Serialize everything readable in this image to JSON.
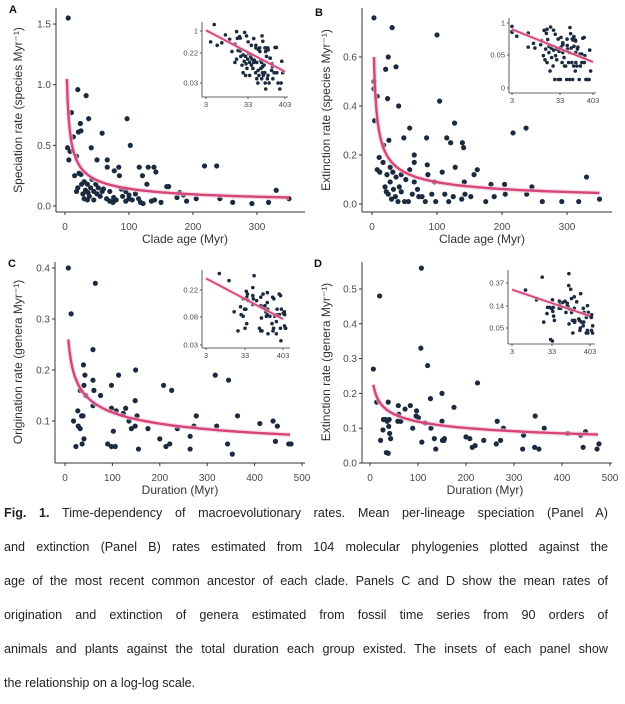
{
  "colors": {
    "points": "#1b2a3e",
    "fit": "#d6457a",
    "fit_band": "#f3c9d8",
    "axis": "#333333"
  },
  "chart_data": [
    {
      "panel": "A",
      "type": "scatter",
      "xlabel": "Clade age (Myr)",
      "ylabel": "Speciation rate (species Myr⁻¹)",
      "xticks": [
        0,
        100,
        200,
        300
      ],
      "yticks": [
        0.0,
        0.5,
        1.0,
        1.5
      ],
      "ytick_labels": [
        "0.0",
        "0.5",
        "1.0",
        "1.5"
      ],
      "fit": {
        "type": "power",
        "a": 1.96,
        "b": -0.569,
        "xrange": [
          3,
          350
        ]
      },
      "points": [
        [
          5,
          1.55
        ],
        [
          33,
          0.91
        ],
        [
          20,
          0.96
        ],
        [
          10,
          0.77
        ],
        [
          24,
          0.68
        ],
        [
          37,
          0.72
        ],
        [
          97,
          0.72
        ],
        [
          102,
          0.5
        ],
        [
          58,
          0.6
        ],
        [
          25,
          0.62
        ],
        [
          21,
          0.61
        ],
        [
          13,
          0.57
        ],
        [
          41,
          0.48
        ],
        [
          4,
          0.48
        ],
        [
          8,
          0.45
        ],
        [
          6,
          0.38
        ],
        [
          18,
          0.41
        ],
        [
          50,
          0.38
        ],
        [
          66,
          0.38
        ],
        [
          66,
          0.32
        ],
        [
          84,
          0.32
        ],
        [
          116,
          0.32
        ],
        [
          130,
          0.32
        ],
        [
          139,
          0.32
        ],
        [
          218,
          0.33
        ],
        [
          237,
          0.33
        ],
        [
          142,
          0.28
        ],
        [
          121,
          0.25
        ],
        [
          85,
          0.25
        ],
        [
          77,
          0.29
        ],
        [
          128,
          0.18
        ],
        [
          159,
          0.16
        ],
        [
          162,
          0.16
        ],
        [
          179,
          0.11
        ],
        [
          330,
          0.13
        ],
        [
          15,
          0.25
        ],
        [
          22,
          0.27
        ],
        [
          25,
          0.26
        ],
        [
          30,
          0.2
        ],
        [
          35,
          0.18
        ],
        [
          40,
          0.15
        ],
        [
          45,
          0.12
        ],
        [
          28,
          0.1
        ],
        [
          32,
          0.13
        ],
        [
          20,
          0.15
        ],
        [
          18,
          0.12
        ],
        [
          50,
          0.1
        ],
        [
          55,
          0.08
        ],
        [
          60,
          0.14
        ],
        [
          65,
          0.06
        ],
        [
          70,
          0.04
        ],
        [
          75,
          0.03
        ],
        [
          80,
          0.05
        ],
        [
          90,
          0.08
        ],
        [
          95,
          0.04
        ],
        [
          100,
          0.06
        ],
        [
          105,
          0.05
        ],
        [
          110,
          0.1
        ],
        [
          115,
          0.06
        ],
        [
          118,
          0.03
        ],
        [
          122,
          0.02
        ],
        [
          135,
          0.04
        ],
        [
          140,
          0.05
        ],
        [
          150,
          0.03
        ],
        [
          175,
          0.07
        ],
        [
          190,
          0.04
        ],
        [
          205,
          0.06
        ],
        [
          242,
          0.06
        ],
        [
          262,
          0.03
        ],
        [
          292,
          0.02
        ],
        [
          318,
          0.03
        ],
        [
          350,
          0.06
        ],
        [
          38,
          0.08
        ],
        [
          42,
          0.22
        ],
        [
          26,
          0.18
        ],
        [
          30,
          0.06
        ],
        [
          36,
          0.11
        ],
        [
          48,
          0.18
        ],
        [
          52,
          0.15
        ],
        [
          58,
          0.12
        ],
        [
          88,
          0.14
        ],
        [
          95,
          0.12
        ],
        [
          100,
          0.09
        ],
        [
          185,
          0.09
        ],
        [
          70,
          0.12
        ],
        [
          76,
          0.07
        ],
        [
          45,
          0.05
        ],
        [
          35,
          0.05
        ]
      ],
      "inset": {
        "scale": "log-log",
        "xtick_labels": [
          "3",
          "33",
          "403"
        ],
        "ytick_labels": [
          "1",
          "0.22",
          "0.03"
        ]
      }
    },
    {
      "panel": "B",
      "type": "scatter",
      "xlabel": "Clade age (Myr)",
      "ylabel": "Extinction rate (species Myr⁻¹)",
      "xticks": [
        0,
        100,
        200,
        300
      ],
      "yticks": [
        0.0,
        0.2,
        0.4,
        0.6
      ],
      "ytick_labels": [
        "0.0",
        "0.2",
        "0.4",
        "0.6"
      ],
      "fit": {
        "type": "power",
        "a": 1.09,
        "b": -0.544,
        "xrange": [
          3,
          350
        ]
      },
      "points": [
        [
          3,
          0.76
        ],
        [
          31,
          0.72
        ],
        [
          100,
          0.69
        ],
        [
          25,
          0.6
        ],
        [
          21,
          0.55
        ],
        [
          37,
          0.56
        ],
        [
          104,
          0.42
        ],
        [
          8,
          0.44
        ],
        [
          24,
          0.43
        ],
        [
          41,
          0.4
        ],
        [
          3,
          0.5
        ],
        [
          3,
          0.47
        ],
        [
          4,
          0.34
        ],
        [
          127,
          0.33
        ],
        [
          237,
          0.31
        ],
        [
          58,
          0.31
        ],
        [
          217,
          0.29
        ],
        [
          84,
          0.27
        ],
        [
          49,
          0.27
        ],
        [
          26,
          0.26
        ],
        [
          115,
          0.27
        ],
        [
          121,
          0.25
        ],
        [
          139,
          0.25
        ],
        [
          141,
          0.23
        ],
        [
          18,
          0.24
        ],
        [
          65,
          0.2
        ],
        [
          65,
          0.17
        ],
        [
          11,
          0.19
        ],
        [
          17,
          0.17
        ],
        [
          85,
          0.16
        ],
        [
          8,
          0.14
        ],
        [
          12,
          0.13
        ],
        [
          23,
          0.12
        ],
        [
          28,
          0.15
        ],
        [
          32,
          0.13
        ],
        [
          37,
          0.11
        ],
        [
          45,
          0.12
        ],
        [
          52,
          0.1
        ],
        [
          58,
          0.14
        ],
        [
          65,
          0.09
        ],
        [
          70,
          0.06
        ],
        [
          86,
          0.12
        ],
        [
          96,
          0.09
        ],
        [
          108,
          0.13
        ],
        [
          128,
          0.15
        ],
        [
          142,
          0.09
        ],
        [
          157,
          0.12
        ],
        [
          162,
          0.14
        ],
        [
          183,
          0.08
        ],
        [
          204,
          0.08
        ],
        [
          246,
          0.07
        ],
        [
          330,
          0.11
        ],
        [
          20,
          0.07
        ],
        [
          22,
          0.05
        ],
        [
          25,
          0.04
        ],
        [
          30,
          0.02
        ],
        [
          33,
          0.06
        ],
        [
          36,
          0.03
        ],
        [
          40,
          0.01
        ],
        [
          45,
          0.05
        ],
        [
          50,
          0.01
        ],
        [
          56,
          0.01
        ],
        [
          62,
          0.04
        ],
        [
          72,
          0.03
        ],
        [
          77,
          0.03
        ],
        [
          82,
          0.01
        ],
        [
          92,
          0.04
        ],
        [
          98,
          0.01
        ],
        [
          112,
          0.04
        ],
        [
          118,
          0.01
        ],
        [
          125,
          0.03
        ],
        [
          138,
          0.02
        ],
        [
          143,
          0.04
        ],
        [
          152,
          0.03
        ],
        [
          175,
          0.01
        ],
        [
          188,
          0.03
        ],
        [
          205,
          0.04
        ],
        [
          238,
          0.04
        ],
        [
          262,
          0.01
        ],
        [
          292,
          0.01
        ],
        [
          318,
          0.01
        ],
        [
          350,
          0.02
        ],
        [
          28,
          0.09
        ],
        [
          42,
          0.07
        ]
      ],
      "inset": {
        "scale": "log-log",
        "xtick_labels": [
          "3",
          "33",
          "403"
        ],
        "ytick_labels": [
          "1",
          "0.05",
          "0"
        ]
      }
    },
    {
      "panel": "C",
      "type": "scatter",
      "xlabel": "Duration (Myr)",
      "ylabel": "Origination rate (genera Myr⁻¹)",
      "xticks": [
        0,
        100,
        200,
        300,
        400,
        500
      ],
      "yticks": [
        0.1,
        0.2,
        0.3,
        0.4
      ],
      "ytick_labels": [
        "0.1",
        "0.2",
        "0.3",
        "0.4"
      ],
      "fit": {
        "type": "power",
        "a": 0.467,
        "b": -0.301,
        "xrange": [
          7,
          475
        ]
      },
      "points": [
        [
          7,
          0.4
        ],
        [
          13,
          0.31
        ],
        [
          64,
          0.37
        ],
        [
          59,
          0.24
        ],
        [
          39,
          0.21
        ],
        [
          42,
          0.19
        ],
        [
          59,
          0.18
        ],
        [
          40,
          0.17
        ],
        [
          32,
          0.16
        ],
        [
          61,
          0.16
        ],
        [
          44,
          0.15
        ],
        [
          75,
          0.15
        ],
        [
          113,
          0.19
        ],
        [
          149,
          0.2
        ],
        [
          98,
          0.17
        ],
        [
          208,
          0.17
        ],
        [
          225,
          0.16
        ],
        [
          317,
          0.19
        ],
        [
          345,
          0.18
        ],
        [
          148,
          0.14
        ],
        [
          59,
          0.13
        ],
        [
          98,
          0.125
        ],
        [
          108,
          0.12
        ],
        [
          123,
          0.115
        ],
        [
          128,
          0.125
        ],
        [
          152,
          0.11
        ],
        [
          277,
          0.11
        ],
        [
          364,
          0.11
        ],
        [
          27,
          0.12
        ],
        [
          35,
          0.11
        ],
        [
          38,
          0.11
        ],
        [
          18,
          0.1
        ],
        [
          28,
          0.09
        ],
        [
          32,
          0.085
        ],
        [
          40,
          0.065
        ],
        [
          36,
          0.055
        ],
        [
          23,
          0.05
        ],
        [
          135,
          0.1
        ],
        [
          140,
          0.085
        ],
        [
          148,
          0.09
        ],
        [
          102,
          0.08
        ],
        [
          175,
          0.085
        ],
        [
          237,
          0.085
        ],
        [
          272,
          0.09
        ],
        [
          320,
          0.09
        ],
        [
          411,
          0.095
        ],
        [
          439,
          0.1
        ],
        [
          448,
          0.09
        ],
        [
          200,
          0.065
        ],
        [
          264,
          0.07
        ],
        [
          221,
          0.055
        ],
        [
          213,
          0.05
        ],
        [
          90,
          0.055
        ],
        [
          98,
          0.05
        ],
        [
          106,
          0.05
        ],
        [
          155,
          0.045
        ],
        [
          264,
          0.045
        ],
        [
          343,
          0.055
        ],
        [
          353,
          0.035
        ],
        [
          444,
          0.06
        ],
        [
          472,
          0.055
        ],
        [
          477,
          0.055
        ]
      ],
      "inset": {
        "scale": "log-log",
        "xtick_labels": [
          "3",
          "33",
          "403"
        ],
        "ytick_labels": [
          "0.22",
          "0.08",
          "0.03"
        ]
      }
    },
    {
      "panel": "D",
      "type": "scatter",
      "xlabel": "Duration (Myr)",
      "ylabel": "Extinction rate (genera Myr⁻¹)",
      "xticks": [
        0,
        100,
        200,
        300,
        400,
        500
      ],
      "yticks": [
        0.0,
        0.1,
        0.2,
        0.3,
        0.4,
        0.5
      ],
      "ytick_labels": [
        "0.0",
        "0.1",
        "0.2",
        "0.3",
        "0.4",
        "0.5"
      ],
      "fit": {
        "type": "power",
        "a": 0.359,
        "b": -0.24,
        "xrange": [
          7,
          475
        ]
      },
      "points": [
        [
          107,
          0.56
        ],
        [
          20,
          0.48
        ],
        [
          106,
          0.33
        ],
        [
          120,
          0.28
        ],
        [
          7,
          0.27
        ],
        [
          224,
          0.23
        ],
        [
          150,
          0.2
        ],
        [
          126,
          0.185
        ],
        [
          14,
          0.175
        ],
        [
          38,
          0.175
        ],
        [
          175,
          0.16
        ],
        [
          59,
          0.165
        ],
        [
          84,
          0.165
        ],
        [
          73,
          0.155
        ],
        [
          97,
          0.15
        ],
        [
          96,
          0.135
        ],
        [
          101,
          0.13
        ],
        [
          60,
          0.14
        ],
        [
          344,
          0.135
        ],
        [
          32,
          0.125
        ],
        [
          40,
          0.125
        ],
        [
          28,
          0.125
        ],
        [
          36,
          0.12
        ],
        [
          58,
          0.12
        ],
        [
          64,
          0.12
        ],
        [
          150,
          0.12
        ],
        [
          265,
          0.12
        ],
        [
          115,
          0.115
        ],
        [
          278,
          0.1
        ],
        [
          363,
          0.1
        ],
        [
          89,
          0.1
        ],
        [
          127,
          0.1
        ],
        [
          39,
          0.105
        ],
        [
          27,
          0.095
        ],
        [
          41,
          0.085
        ],
        [
          43,
          0.07
        ],
        [
          22,
          0.065
        ],
        [
          134,
          0.07
        ],
        [
          151,
          0.065
        ],
        [
          155,
          0.07
        ],
        [
          154,
          0.065
        ],
        [
          200,
          0.075
        ],
        [
          208,
          0.07
        ],
        [
          237,
          0.065
        ],
        [
          272,
          0.065
        ],
        [
          263,
          0.055
        ],
        [
          320,
          0.08
        ],
        [
          412,
          0.085
        ],
        [
          439,
          0.08
        ],
        [
          449,
          0.09
        ],
        [
          108,
          0.06
        ],
        [
          213,
          0.045
        ],
        [
          219,
          0.05
        ],
        [
          137,
          0.04
        ],
        [
          318,
          0.04
        ],
        [
          343,
          0.045
        ],
        [
          352,
          0.04
        ],
        [
          444,
          0.045
        ],
        [
          473,
          0.04
        ],
        [
          477,
          0.055
        ],
        [
          34,
          0.03
        ],
        [
          38,
          0.028
        ]
      ],
      "inset": {
        "scale": "log-log",
        "xtick_labels": [
          "3",
          "33",
          "403"
        ],
        "ytick_labels": [
          "0.37",
          "0.14",
          "0.05"
        ]
      }
    }
  ],
  "caption": {
    "label": "Fig. 1.",
    "lines": [
      " Time-dependency of macroevolutionary rates. Mean per-lineage speciation (Panel A)",
      "and extinction (Panel B) rates estimated from 104 molecular phylogenies plotted against the",
      "age of the most recent common ancestor of each clade. Panels C and D show the mean rates of",
      "origination and extinction of genera estimated from fossil time series from 90 orders of",
      "animals and plants against the total duration each group existed. The insets of each panel show",
      "the relationship on a log-log scale."
    ]
  }
}
